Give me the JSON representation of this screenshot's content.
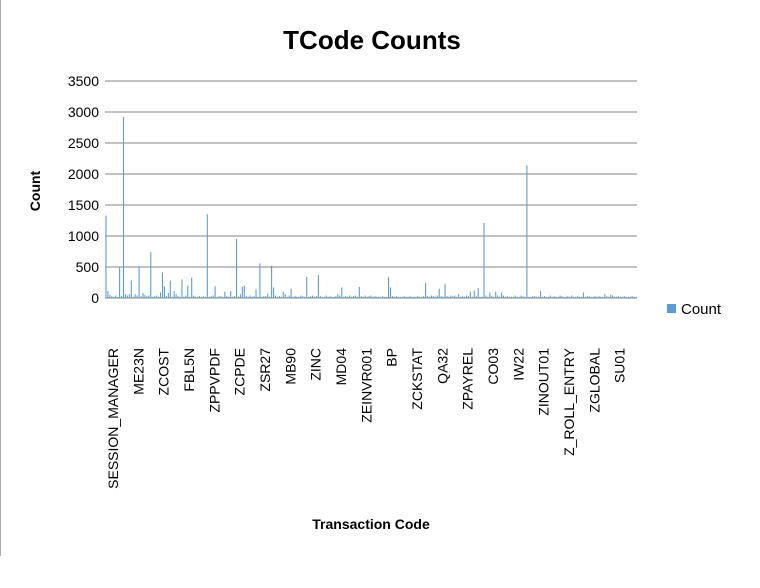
{
  "chart_data": {
    "type": "bar",
    "title": "TCode Counts",
    "xlabel": "Transaction Code",
    "ylabel": "Count",
    "ylim": [
      0,
      3500
    ],
    "yticks": [
      0,
      500,
      1000,
      1500,
      2000,
      2500,
      3000,
      3500
    ],
    "grid": true,
    "legend_position": "right",
    "bar_color": "#5b9bd5",
    "x_tick_labels": [
      "SESSION_MANAGER",
      "ME23N",
      "ZCOST",
      "FBL5N",
      "ZPPVPDF",
      "ZCPDE",
      "ZSR27",
      "MB90",
      "ZINC",
      "MD04",
      "ZEINVR001",
      "BP",
      "ZCKSTAT",
      "QA32",
      "ZPAYREL",
      "CO03",
      "IW22",
      "ZINOUT01",
      "Z_ROLL_ENTRY",
      "ZGLOBAL",
      "SU01"
    ],
    "series": [
      {
        "name": "Count",
        "values": [
          1330,
          110,
          50,
          30,
          20,
          40,
          15,
          490,
          30,
          2920,
          60,
          40,
          60,
          280,
          20,
          60,
          40,
          510,
          30,
          80,
          50,
          30,
          40,
          740,
          20,
          30,
          40,
          20,
          90,
          410,
          190,
          30,
          80,
          280,
          20,
          110,
          60,
          30,
          20,
          300,
          20,
          40,
          200,
          20,
          330,
          40,
          20,
          20,
          30,
          20,
          30,
          20,
          1350,
          20,
          30,
          40,
          190,
          20,
          30,
          30,
          20,
          100,
          30,
          20,
          110,
          20,
          30,
          950,
          20,
          60,
          180,
          200,
          30,
          20,
          40,
          20,
          30,
          140,
          20,
          560,
          20,
          30,
          30,
          70,
          20,
          520,
          170,
          40,
          20,
          30,
          20,
          100,
          60,
          20,
          40,
          150,
          20,
          30,
          20,
          20,
          40,
          30,
          20,
          340,
          20,
          30,
          40,
          20,
          30,
          370,
          30,
          20,
          20,
          40,
          20,
          30,
          20,
          20,
          30,
          60,
          40,
          170,
          20,
          30,
          20,
          40,
          20,
          30,
          40,
          20,
          180,
          30,
          20,
          40,
          20,
          30,
          40,
          20,
          30,
          20,
          20,
          20,
          30,
          20,
          20,
          340,
          170,
          30,
          20,
          30,
          20,
          20,
          20,
          30,
          20,
          20,
          30,
          20,
          20,
          20,
          30,
          20,
          20,
          30,
          240,
          30,
          20,
          40,
          30,
          20,
          40,
          150,
          30,
          20,
          230,
          30,
          20,
          40,
          30,
          40,
          20,
          60,
          20,
          30,
          20,
          40,
          30,
          100,
          20,
          120,
          30,
          160,
          20,
          20,
          1210,
          40,
          20,
          90,
          30,
          20,
          100,
          40,
          20,
          90,
          40,
          20,
          30,
          20,
          20,
          20,
          40,
          20,
          20,
          40,
          30,
          20,
          2140,
          20,
          20,
          30,
          30,
          20,
          20,
          110,
          20,
          30,
          20,
          20,
          40,
          20,
          30,
          20,
          20,
          40,
          30,
          20,
          20,
          30,
          20,
          40,
          20,
          20,
          30,
          20,
          20,
          90,
          20,
          30,
          30,
          20,
          20,
          30,
          20,
          30,
          20,
          20,
          60,
          30,
          20,
          50,
          40,
          20,
          20,
          30,
          20,
          20,
          30,
          20,
          20,
          20,
          30,
          20,
          20
        ]
      }
    ]
  }
}
